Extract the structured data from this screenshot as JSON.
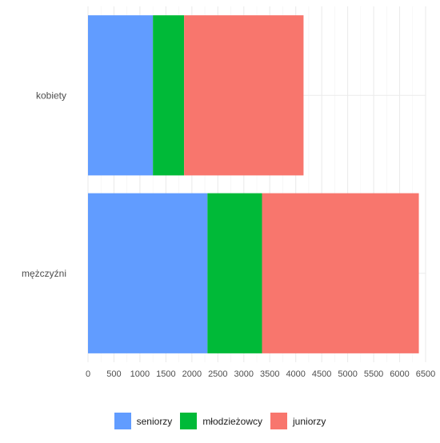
{
  "chart_data": {
    "type": "bar",
    "orientation": "horizontal",
    "stacked": true,
    "categories": [
      "kobiety",
      "mężczyźni"
    ],
    "series": [
      {
        "name": "seniorzy",
        "color": "#619CFF",
        "values": [
          1250,
          2300
        ]
      },
      {
        "name": "młodzieżowcy",
        "color": "#00BA38",
        "values": [
          600,
          1050
        ]
      },
      {
        "name": "juniorzy",
        "color": "#F8766D",
        "values": [
          2300,
          3020
        ]
      }
    ],
    "x_ticks": [
      "0",
      "500",
      "1000",
      "1500",
      "2000",
      "2500",
      "3000",
      "3500",
      "4000",
      "4500",
      "5000",
      "5500",
      "6000",
      "6500"
    ],
    "xlim": [
      0,
      6500
    ],
    "grid": true,
    "legend_position": "bottom"
  }
}
